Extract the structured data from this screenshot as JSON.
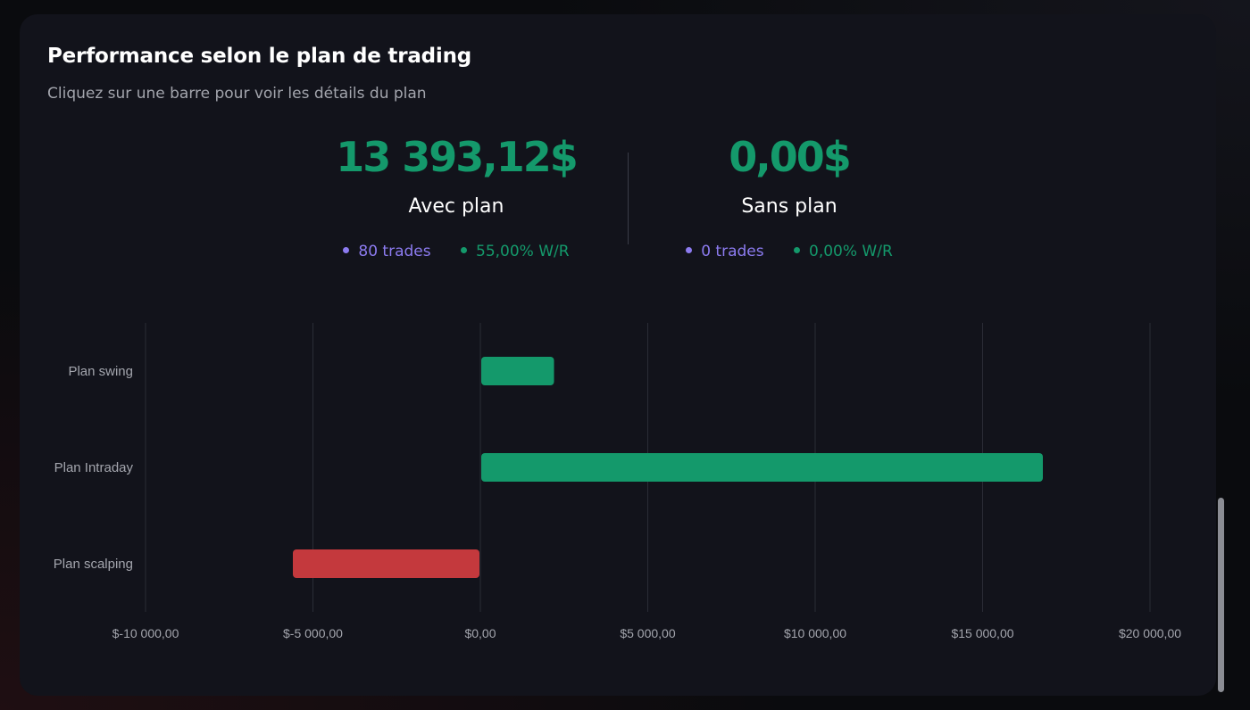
{
  "header": {
    "title": "Performance selon le plan de trading",
    "subtitle": "Cliquez sur une barre pour voir les détails du plan"
  },
  "summary": {
    "with_plan": {
      "amount": "13 393,12$",
      "label": "Avec plan",
      "trades": "80 trades",
      "winrate": "55,00% W/R"
    },
    "without_plan": {
      "amount": "0,00$",
      "label": "Sans plan",
      "trades": "0 trades",
      "winrate": "0,00% W/R"
    }
  },
  "colors": {
    "positive": "#14996b",
    "negative": "#c4393d",
    "trades_dot": "#8c7bf0",
    "grid": "#2a2c36"
  },
  "chart_data": {
    "type": "bar",
    "orientation": "horizontal",
    "categories": [
      "Plan swing",
      "Plan Intraday",
      "Plan scalping"
    ],
    "values": [
      2200,
      16800,
      -5600
    ],
    "xlim": [
      -10000,
      20000
    ],
    "xticks": [
      -10000,
      -5000,
      0,
      5000,
      10000,
      15000,
      20000
    ],
    "xtick_labels": [
      "$-10 000,00",
      "$-5 000,00",
      "$0,00",
      "$5 000,00",
      "$10 000,00",
      "$15 000,00",
      "$20 000,00"
    ],
    "grid": "vertical",
    "legend": "none"
  }
}
